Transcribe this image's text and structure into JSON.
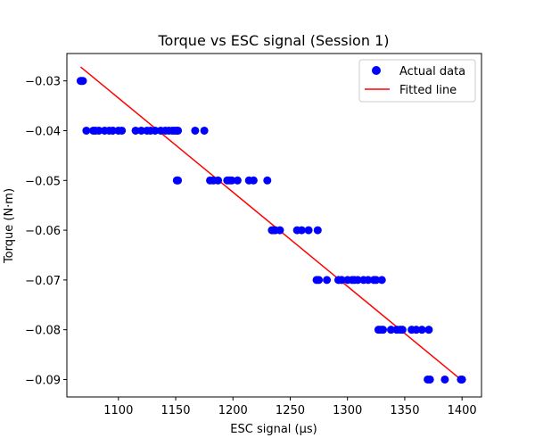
{
  "chart_data": {
    "type": "scatter",
    "title": "Torque vs ESC signal (Session 1)",
    "xlabel": "ESC signal (µs)",
    "ylabel": "Torque (N·m)",
    "xlim": [
      1055,
      1417
    ],
    "ylim": [
      -0.0935,
      -0.0245
    ],
    "xticks": [
      1100,
      1150,
      1200,
      1250,
      1300,
      1350,
      1400
    ],
    "yticks": [
      -0.03,
      -0.04,
      -0.05,
      -0.06,
      -0.07,
      -0.08,
      -0.09
    ],
    "xtick_labels": [
      "1100",
      "1150",
      "1200",
      "1250",
      "1300",
      "1350",
      "1400"
    ],
    "ytick_labels": [
      "−0.03",
      "−0.04",
      "−0.05",
      "−0.06",
      "−0.07",
      "−0.08",
      "−0.09"
    ],
    "grid": false,
    "legend": {
      "position": "top-right",
      "entries": [
        "Actual data",
        "Fitted line"
      ]
    },
    "series": [
      {
        "name": "Actual data",
        "kind": "scatter",
        "color": "#0000ff",
        "points": [
          [
            1067,
            -0.03
          ],
          [
            1068,
            -0.03
          ],
          [
            1069,
            -0.03
          ],
          [
            1072,
            -0.04
          ],
          [
            1078,
            -0.04
          ],
          [
            1080,
            -0.04
          ],
          [
            1083,
            -0.04
          ],
          [
            1088,
            -0.04
          ],
          [
            1092,
            -0.04
          ],
          [
            1095,
            -0.04
          ],
          [
            1100,
            -0.04
          ],
          [
            1103,
            -0.04
          ],
          [
            1115,
            -0.04
          ],
          [
            1120,
            -0.04
          ],
          [
            1125,
            -0.04
          ],
          [
            1128,
            -0.04
          ],
          [
            1132,
            -0.04
          ],
          [
            1137,
            -0.04
          ],
          [
            1141,
            -0.04
          ],
          [
            1144,
            -0.04
          ],
          [
            1147,
            -0.04
          ],
          [
            1149,
            -0.04
          ],
          [
            1151,
            -0.04
          ],
          [
            1152,
            -0.04
          ],
          [
            1167,
            -0.04
          ],
          [
            1175,
            -0.04
          ],
          [
            1151,
            -0.05
          ],
          [
            1152,
            -0.05
          ],
          [
            1180,
            -0.05
          ],
          [
            1183,
            -0.05
          ],
          [
            1187,
            -0.05
          ],
          [
            1195,
            -0.05
          ],
          [
            1197,
            -0.05
          ],
          [
            1199,
            -0.05
          ],
          [
            1204,
            -0.05
          ],
          [
            1214,
            -0.05
          ],
          [
            1218,
            -0.05
          ],
          [
            1230,
            -0.05
          ],
          [
            1234,
            -0.06
          ],
          [
            1235,
            -0.06
          ],
          [
            1237,
            -0.06
          ],
          [
            1241,
            -0.06
          ],
          [
            1256,
            -0.06
          ],
          [
            1260,
            -0.06
          ],
          [
            1266,
            -0.06
          ],
          [
            1274,
            -0.06
          ],
          [
            1273,
            -0.07
          ],
          [
            1275,
            -0.07
          ],
          [
            1282,
            -0.07
          ],
          [
            1292,
            -0.07
          ],
          [
            1295,
            -0.07
          ],
          [
            1300,
            -0.07
          ],
          [
            1304,
            -0.07
          ],
          [
            1306,
            -0.07
          ],
          [
            1309,
            -0.07
          ],
          [
            1314,
            -0.07
          ],
          [
            1318,
            -0.07
          ],
          [
            1323,
            -0.07
          ],
          [
            1325,
            -0.07
          ],
          [
            1330,
            -0.07
          ],
          [
            1327,
            -0.08
          ],
          [
            1329,
            -0.08
          ],
          [
            1331,
            -0.08
          ],
          [
            1338,
            -0.08
          ],
          [
            1343,
            -0.08
          ],
          [
            1346,
            -0.08
          ],
          [
            1348,
            -0.08
          ],
          [
            1356,
            -0.08
          ],
          [
            1360,
            -0.08
          ],
          [
            1365,
            -0.08
          ],
          [
            1371,
            -0.08
          ],
          [
            1370,
            -0.09
          ],
          [
            1372,
            -0.09
          ],
          [
            1385,
            -0.09
          ],
          [
            1399,
            -0.09
          ],
          [
            1400,
            -0.09
          ]
        ]
      },
      {
        "name": "Fitted line",
        "kind": "line",
        "color": "#ff0000",
        "points": [
          [
            1067,
            -0.0272
          ],
          [
            1400,
            -0.0902
          ]
        ]
      }
    ]
  }
}
